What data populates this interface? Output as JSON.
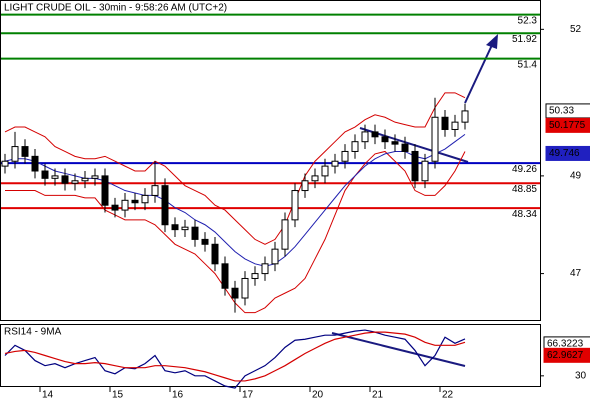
{
  "chart_data": [
    {
      "type": "candlestick",
      "title": "LIGHT CRUDE OIL - 30min - 9:58:26 AM (UTC+2)",
      "categories": [
        null,
        null,
        null,
        null,
        "14",
        null,
        null,
        null,
        null,
        null,
        null,
        "15",
        null,
        null,
        null,
        null,
        null,
        "16",
        null,
        null,
        null,
        null,
        null,
        null,
        "17",
        null,
        null,
        null,
        null,
        null,
        null,
        "20",
        null,
        null,
        null,
        null,
        null,
        "21",
        null,
        null,
        null,
        null,
        null,
        null,
        "22",
        null,
        null
      ],
      "open": [
        49.2,
        49.3,
        49.6,
        49.4,
        49.1,
        48.95,
        49.0,
        48.85,
        48.9,
        48.95,
        49.0,
        48.4,
        48.3,
        48.5,
        48.45,
        48.6,
        48.8,
        48.0,
        47.9,
        47.95,
        47.7,
        47.6,
        47.2,
        46.7,
        46.5,
        46.9,
        47.0,
        47.2,
        47.5,
        48.1,
        48.7,
        48.9,
        49.0,
        49.2,
        49.3,
        49.5,
        49.7,
        49.9,
        49.8,
        49.7,
        49.65,
        49.5,
        48.9,
        49.3,
        50.2,
        49.95,
        50.1
      ],
      "high": [
        49.45,
        49.9,
        49.75,
        49.55,
        49.25,
        49.15,
        49.15,
        49.05,
        49.1,
        49.15,
        49.15,
        48.55,
        48.65,
        48.65,
        48.75,
        49.3,
        48.95,
        48.15,
        48.1,
        48.1,
        47.85,
        47.75,
        47.35,
        46.85,
        47.05,
        47.15,
        47.35,
        47.65,
        48.25,
        48.85,
        49.05,
        49.15,
        49.35,
        49.45,
        49.65,
        49.85,
        50.05,
        50.05,
        49.95,
        49.85,
        49.8,
        49.65,
        49.45,
        50.6,
        50.35,
        50.25,
        50.48
      ],
      "low": [
        49.05,
        49.15,
        49.25,
        48.95,
        48.8,
        48.8,
        48.7,
        48.7,
        48.75,
        48.8,
        48.25,
        48.15,
        48.15,
        48.3,
        48.3,
        48.45,
        47.85,
        47.75,
        47.75,
        47.55,
        47.45,
        47.05,
        46.55,
        46.2,
        46.35,
        46.75,
        46.85,
        47.05,
        47.35,
        47.95,
        48.55,
        48.75,
        48.85,
        49.05,
        49.15,
        49.35,
        49.55,
        49.65,
        49.55,
        49.5,
        49.35,
        48.75,
        48.75,
        49.15,
        49.8,
        49.8,
        49.95
      ],
      "close": [
        49.3,
        49.6,
        49.4,
        49.1,
        48.95,
        49.0,
        48.85,
        48.9,
        48.95,
        49.0,
        48.4,
        48.3,
        48.5,
        48.45,
        48.6,
        48.8,
        48.0,
        47.9,
        47.95,
        47.7,
        47.6,
        47.2,
        46.7,
        46.5,
        46.9,
        47.0,
        47.2,
        47.5,
        48.1,
        48.7,
        48.9,
        49.0,
        49.2,
        49.3,
        49.5,
        49.7,
        49.9,
        49.8,
        49.7,
        49.65,
        49.5,
        48.9,
        49.3,
        50.2,
        49.95,
        50.1,
        50.33
      ],
      "overlays": [
        {
          "color": "#d40000",
          "values": [
            49.9,
            50.0,
            50.0,
            49.9,
            49.8,
            49.6,
            49.5,
            49.4,
            49.35,
            49.35,
            49.4,
            49.3,
            49.2,
            49.1,
            49.1,
            49.3,
            49.2,
            49.0,
            48.8,
            48.7,
            48.6,
            48.4,
            48.3,
            48.1,
            47.9,
            47.7,
            47.6,
            47.7,
            48.0,
            48.5,
            49.0,
            49.3,
            49.5,
            49.7,
            49.9,
            50.0,
            50.15,
            50.25,
            50.2,
            50.1,
            50.05,
            50.0,
            50.0,
            50.4,
            50.7,
            50.7,
            50.6
          ]
        },
        {
          "color": "#d40000",
          "values": [
            48.7,
            48.7,
            48.7,
            48.7,
            48.6,
            48.6,
            48.6,
            48.6,
            48.55,
            48.55,
            48.3,
            48.2,
            48.1,
            48.1,
            48.1,
            48.0,
            47.8,
            47.6,
            47.5,
            47.4,
            47.2,
            47.0,
            46.7,
            46.4,
            46.2,
            46.2,
            46.3,
            46.5,
            46.6,
            46.7,
            46.9,
            47.3,
            47.7,
            48.2,
            48.7,
            49.0,
            49.25,
            49.45,
            49.5,
            49.3,
            49.1,
            48.7,
            48.6,
            48.6,
            48.8,
            49.1,
            49.5
          ]
        },
        {
          "color": "#2020b0",
          "values": [
            49.3,
            49.35,
            49.35,
            49.3,
            49.2,
            49.1,
            49.05,
            49.0,
            48.95,
            48.95,
            48.9,
            48.8,
            48.7,
            48.65,
            48.6,
            48.6,
            48.5,
            48.35,
            48.25,
            48.1,
            48.0,
            47.85,
            47.65,
            47.45,
            47.3,
            47.2,
            47.15,
            47.2,
            47.35,
            47.55,
            47.8,
            48.05,
            48.3,
            48.55,
            48.8,
            49.0,
            49.2,
            49.35,
            49.45,
            49.5,
            49.5,
            49.4,
            49.35,
            49.45,
            49.55,
            49.7,
            49.85
          ]
        }
      ],
      "levels": [
        {
          "value": 52.3,
          "color": "#008000"
        },
        {
          "value": 51.92,
          "color": "#008000"
        },
        {
          "value": 51.4,
          "color": "#008000"
        },
        {
          "value": 49.26,
          "color": "#0000c0"
        },
        {
          "value": 48.85,
          "color": "#e00000"
        },
        {
          "value": 48.34,
          "color": "#e00000"
        }
      ],
      "markers": [
        {
          "value": 50.33,
          "color": "#ffffff"
        },
        {
          "value": 50.1775,
          "color": "#e00000"
        },
        {
          "value": 49.746,
          "color": "#2020c0"
        }
      ],
      "ylim": [
        46.05,
        52.58
      ],
      "yticks": [
        52,
        49,
        47
      ]
    },
    {
      "type": "line",
      "title": "RSI14 - 9MA",
      "series": [
        {
          "color": "#000080",
          "values": [
            50,
            60,
            55,
            45,
            40,
            42,
            38,
            42,
            45,
            48,
            35,
            32,
            38,
            37,
            42,
            50,
            35,
            33,
            35,
            30,
            30,
            25,
            20,
            18,
            30,
            35,
            40,
            48,
            58,
            65,
            66,
            68,
            70,
            70,
            72,
            74,
            75,
            73,
            70,
            68,
            66,
            55,
            40,
            50,
            68,
            62,
            66.32
          ]
        },
        {
          "color": "#d40000",
          "values": [
            52,
            54,
            55,
            53,
            50,
            47,
            44,
            42,
            42,
            43,
            42,
            40,
            38,
            38,
            38,
            40,
            40,
            39,
            38,
            36,
            34,
            31,
            28,
            25,
            25,
            27,
            30,
            35,
            40,
            46,
            52,
            57,
            62,
            66,
            68,
            70,
            72,
            73,
            73,
            72,
            71,
            68,
            63,
            60,
            60,
            60,
            62.96
          ]
        }
      ],
      "markers": [
        {
          "value": 66.3223,
          "color": "#ffffff"
        },
        {
          "value": 62.9627,
          "color": "#e00000"
        }
      ],
      "ylim": [
        20,
        80
      ],
      "yticks": [
        30
      ]
    }
  ]
}
